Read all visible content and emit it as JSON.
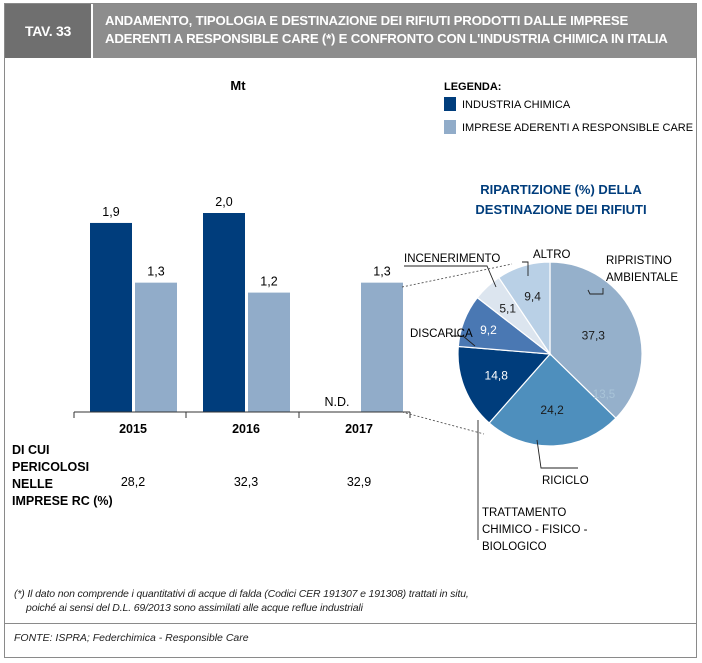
{
  "header": {
    "tag": "TAV. 33",
    "title_line1": "ANDAMENTO, TIPOLOGIA E DESTINAZIONE DEI RIFIUTI PRODOTTI DALLE IMPRESE",
    "title_line2": "ADERENTI A RESPONSIBLE CARE (*) E CONFRONTO CON L'INDUSTRIA CHIMICA IN ITALIA"
  },
  "colors": {
    "dark": "#003d7c",
    "light": "#91acc9",
    "header_dark": "#6f6f6f",
    "header_light": "#8d8d8d"
  },
  "chart_data": [
    {
      "type": "bar",
      "unit_label": "Mt",
      "categories": [
        "2015",
        "2016",
        "2017"
      ],
      "series": [
        {
          "name": "INDUSTRIA CHIMICA",
          "color": "#003d7c",
          "values": [
            1.9,
            2.0,
            null
          ],
          "labels": [
            "1,9",
            "2,0",
            "N.D."
          ]
        },
        {
          "name": "IMPRESE ADERENTI A RESPONSIBLE CARE",
          "color": "#91acc9",
          "values": [
            1.3,
            1.2,
            1.3
          ],
          "labels": [
            "1,3",
            "1,2",
            "1,3"
          ]
        }
      ],
      "ylim": [
        0,
        2.5
      ],
      "legend": {
        "title": "LEGENDA:",
        "placement": "top-right"
      },
      "hazardous": {
        "label_lines": [
          "DI CUI",
          "PERICOLOSI",
          "NELLE",
          "IMPRESE RC (%)"
        ],
        "values": [
          "28,2",
          "32,3",
          "32,9"
        ]
      }
    },
    {
      "type": "pie",
      "title_lines": [
        "RIPARTIZIONE (%) DELLA",
        "DESTINAZIONE DEI RIFIUTI"
      ],
      "slices": [
        {
          "name": "RIPRISTINO AMBIENTALE",
          "label_lines": [
            "RIPRISTINO",
            "AMBIENTALE"
          ],
          "value": 37.3,
          "text": "37,3",
          "color": "#95b0cb",
          "text_color": "#1a1a1a"
        },
        {
          "name": "RICICLO",
          "label_lines": [
            "RICICLO"
          ],
          "value": 24.2,
          "text": "24,2",
          "color": "#4e8fbd",
          "text_color": "#1a1a1a"
        },
        {
          "name": "TRATTAMENTO CHIMICO - FISICO - BIOLOGICO",
          "label_lines": [
            "TRATTAMENTO",
            "CHIMICO - FISICO -",
            "BIOLOGICO"
          ],
          "value": 14.8,
          "text": "14,8",
          "color": "#003d7c",
          "text_color": "#ffffff"
        },
        {
          "name": "DISCARICA",
          "label_lines": [
            "DISCARICA"
          ],
          "value": 9.2,
          "text": "9,2",
          "color": "#4a78b3",
          "text_color": "#ffffff"
        },
        {
          "name": "INCENERIMENTO",
          "label_lines": [
            "INCENERIMENTO"
          ],
          "value": 5.1,
          "text": "5,1",
          "color": "#dce5ef",
          "text_color": "#1a1a1a"
        },
        {
          "name": "ALTRO",
          "label_lines": [
            "ALTRO"
          ],
          "value": 9.4,
          "text": "9,4",
          "color": "#b9d0e6",
          "text_color": "#1a1a1a"
        }
      ],
      "ghost_text": "13,5"
    }
  ],
  "footnote": {
    "line1": "(*) Il dato non comprende i quantitativi di acque di falda (Codici CER 191307 e 191308) trattati in situ,",
    "line2": "poiché ai sensi del D.L. 69/2013 sono assimilati alle acque reflue industriali"
  },
  "source": "FONTE: ISPRA; Federchimica - Responsible Care"
}
